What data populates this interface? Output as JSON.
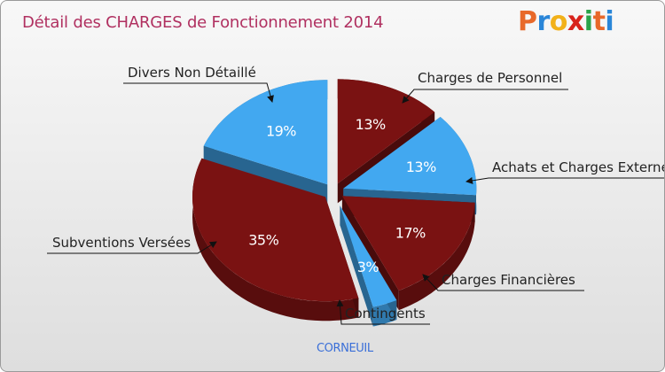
{
  "header": {
    "title": "Détail des CHARGES de Fonctionnement 2014",
    "logo_letters": [
      "P",
      "r",
      "o",
      "x",
      "i",
      "t",
      "i"
    ],
    "logo_colors": [
      "#e8692a",
      "#2a86d8",
      "#f2b11a",
      "#d8231c",
      "#2aa34a",
      "#e8692a",
      "#2a86d8"
    ]
  },
  "footer": {
    "commune": "CORNEUIL"
  },
  "colors": {
    "personnel_dark": "#7a1212",
    "blue": "#42a8f0",
    "title": "#b03060"
  },
  "chart_data": {
    "type": "pie",
    "title": "Détail des CHARGES de Fonctionnement 2014",
    "slices": [
      {
        "label": "Charges de Personnel",
        "value": 13,
        "pct_label": "13%",
        "color": "#7a1212"
      },
      {
        "label": "Achats et Charges Externes",
        "value": 13,
        "pct_label": "13%",
        "color": "#42a8f0"
      },
      {
        "label": "Charges Financières",
        "value": 17,
        "pct_label": "17%",
        "color": "#7a1212"
      },
      {
        "label": "Contingents",
        "value": 3,
        "pct_label": "3%",
        "color": "#42a8f0"
      },
      {
        "label": "Subventions Versées",
        "value": 35,
        "pct_label": "35%",
        "color": "#7a1212"
      },
      {
        "label": "Divers Non Détaillé",
        "value": 19,
        "pct_label": "19%",
        "color": "#42a8f0"
      }
    ]
  }
}
